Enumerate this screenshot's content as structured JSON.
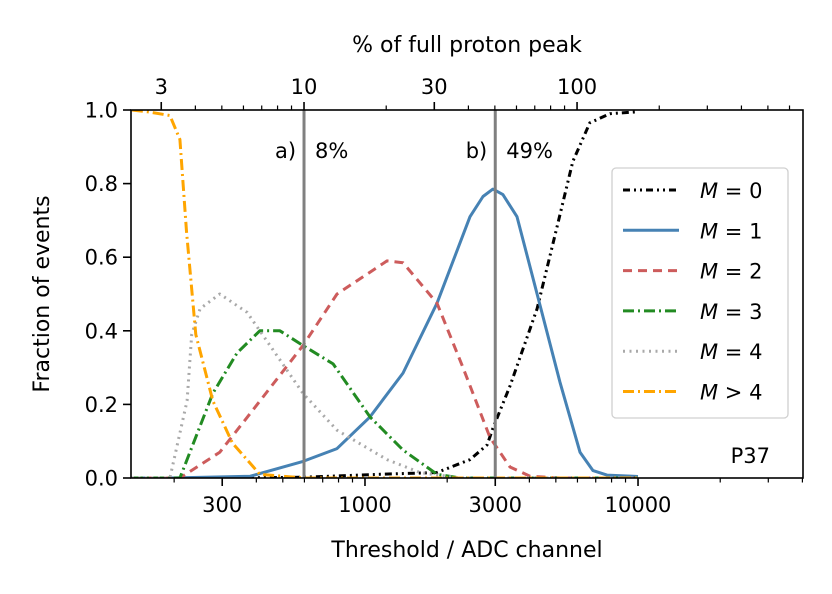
{
  "chart_data": {
    "type": "line",
    "xlabel": "Threshold / ADC channel",
    "ylabel": "Fraction of events",
    "top_xlabel": "% of full proton peak",
    "xscale": "log",
    "xlim": [
      139,
      40200
    ],
    "ylim": [
      0,
      1.0
    ],
    "grid": false,
    "legend_position": "right",
    "xticks": [
      300,
      1000,
      3000,
      10000
    ],
    "xtick_labels": [
      "300",
      "1000",
      "3000",
      "10000"
    ],
    "top_xticks": [
      3,
      10,
      30,
      100
    ],
    "top_xtick_labels": [
      "3",
      "10",
      "30",
      "100"
    ],
    "yticks": [
      0,
      0.2,
      0.4,
      0.6,
      0.8,
      1.0
    ],
    "ytick_labels": [
      "0.0",
      "0.2",
      "0.4",
      "0.6",
      "0.8",
      "1.0"
    ],
    "text_annotation": "P37",
    "vlines": [
      {
        "x": 598,
        "letter": "a)",
        "label": "8%",
        "color": "#808080"
      },
      {
        "x": 3000,
        "letter": "b)",
        "label": "49%",
        "color": "#808080"
      }
    ],
    "series": [
      {
        "name": "M = 0",
        "color": "#000000",
        "dash": "7,4,2,4,2,4",
        "x": [
          140,
          300,
          578,
          745,
          1135,
          1835,
          2424,
          2800,
          2940,
          3396,
          4270,
          5040,
          5770,
          6660,
          7890,
          9900
        ],
        "y": [
          0,
          0.0,
          0.002,
          0.005,
          0.01,
          0.015,
          0.05,
          0.09,
          0.135,
          0.25,
          0.46,
          0.68,
          0.86,
          0.965,
          0.99,
          0.995
        ]
      },
      {
        "name": "M = 1",
        "color": "#4682b4",
        "dash": "",
        "x": [
          140,
          193,
          380,
          593,
          790,
          1043,
          1378,
          1835,
          2424,
          2705,
          2940,
          3200,
          3605,
          4270,
          5180,
          6130,
          6840,
          7700,
          10000
        ],
        "y": [
          0,
          0.0,
          0.005,
          0.045,
          0.08,
          0.166,
          0.285,
          0.475,
          0.71,
          0.765,
          0.785,
          0.77,
          0.71,
          0.5,
          0.26,
          0.07,
          0.02,
          0.008,
          0.004
        ]
      },
      {
        "name": "M = 2",
        "color": "#cd5c5c",
        "dash": "9,6",
        "x": [
          140,
          210,
          294,
          389,
          593,
          790,
          1204,
          1378,
          1835,
          2285,
          2870,
          3396,
          4020,
          5180,
          10000
        ],
        "y": [
          0,
          0,
          0.07,
          0.185,
          0.36,
          0.5,
          0.59,
          0.585,
          0.475,
          0.3,
          0.11,
          0.03,
          0.005,
          0,
          0
        ]
      },
      {
        "name": "M = 3",
        "color": "#228b22",
        "dash": "11,4,2,4",
        "x": [
          140,
          210,
          277,
          340,
          412,
          488,
          593,
          764,
          1043,
          1378,
          1835,
          2230,
          10000
        ],
        "y": [
          0,
          0,
          0.23,
          0.34,
          0.4,
          0.4,
          0.36,
          0.31,
          0.166,
          0.076,
          0.01,
          0,
          0
        ]
      },
      {
        "name": "M = 4",
        "color": "#a9a9a9",
        "dash": "2,4.5",
        "x": [
          140,
          193,
          223,
          232,
          249,
          294,
          370,
          449,
          593,
          790,
          1204,
          1590,
          2230,
          10000
        ],
        "y": [
          0,
          0,
          0.21,
          0.39,
          0.46,
          0.5,
          0.45,
          0.36,
          0.23,
          0.13,
          0.05,
          0.015,
          0,
          0
        ]
      },
      {
        "name": "M > 4",
        "color": "#ffa500",
        "dash": "11,4,2,4",
        "x": [
          140,
          160,
          193,
          210,
          222,
          240,
          277,
          327,
          412,
          600,
          10000
        ],
        "y": [
          1.0,
          0.995,
          0.985,
          0.92,
          0.67,
          0.39,
          0.21,
          0.095,
          0.01,
          0,
          0
        ]
      }
    ]
  }
}
